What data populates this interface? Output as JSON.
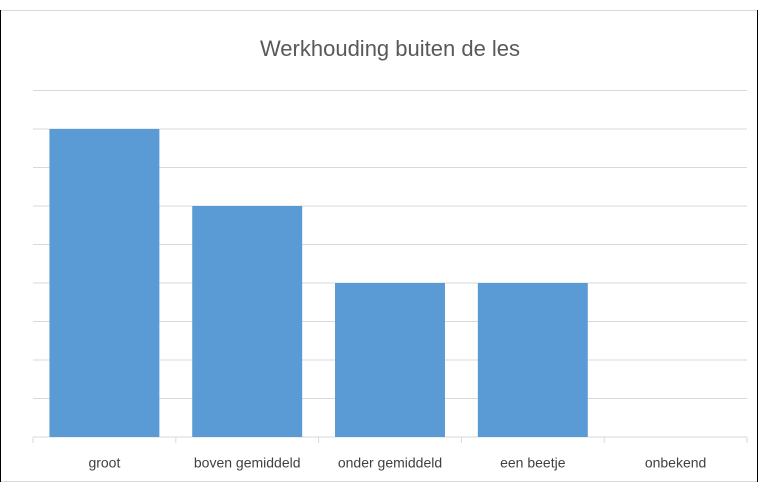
{
  "chart_data": {
    "type": "bar",
    "title": "Werkhouding buiten de les",
    "categories": [
      "groot",
      "boven gemiddeld",
      "onder gemiddeld",
      "een beetje",
      "onbekend"
    ],
    "values": [
      8,
      6,
      4,
      4,
      0
    ],
    "color": "#5b9bd5",
    "ylim": [
      0,
      9
    ],
    "yticks": [
      0,
      1,
      2,
      3,
      4,
      5,
      6,
      7,
      8,
      9
    ],
    "grid": true
  }
}
